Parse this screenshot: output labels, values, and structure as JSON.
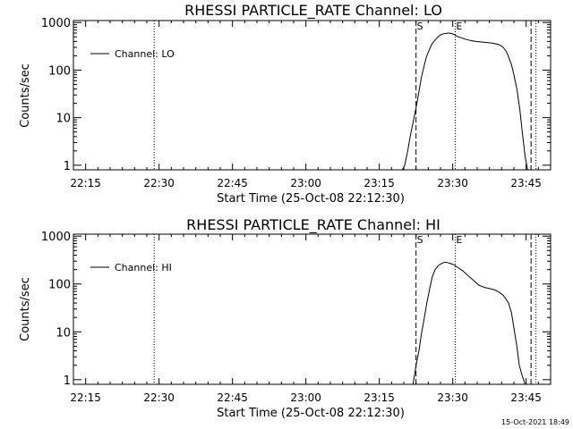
{
  "footer_timestamp": "15-Oct-2021 18:49",
  "chart_data": [
    {
      "type": "line",
      "title": "RHESSI PARTICLE_RATE Channel: LO",
      "xlabel": "Start Time (25-Oct-08 22:12:30)",
      "ylabel": "Counts/sec",
      "x_units": "minutes after 22:12:30",
      "xlim": [
        0,
        97.5
      ],
      "ylim": [
        0.8,
        1100
      ],
      "yscale": "log",
      "x_ticks": [
        {
          "value": 2.5,
          "label": "22:15"
        },
        {
          "value": 17.5,
          "label": "22:30"
        },
        {
          "value": 32.5,
          "label": "22:45"
        },
        {
          "value": 47.5,
          "label": "23:00"
        },
        {
          "value": 62.5,
          "label": "23:15"
        },
        {
          "value": 77.5,
          "label": "23:30"
        },
        {
          "value": 92.5,
          "label": "23:45"
        }
      ],
      "y_ticks": [
        {
          "value": 1,
          "label": "1"
        },
        {
          "value": 10,
          "label": "10"
        },
        {
          "value": 100,
          "label": "100"
        },
        {
          "value": 1000,
          "label": "1000"
        }
      ],
      "legend": {
        "position": "top-left",
        "label": "Channel: LO"
      },
      "markers": [
        {
          "x": 16.5,
          "style": "dotted",
          "label": ""
        },
        {
          "x": 70.0,
          "style": "dashed",
          "label": "S"
        },
        {
          "x": 78.0,
          "style": "dotted",
          "label": "E"
        },
        {
          "x": 93.5,
          "style": "dashed",
          "label": ""
        },
        {
          "x": 94.5,
          "style": "dotted",
          "label": ""
        }
      ],
      "series": [
        {
          "x": [
            67.2,
            67.7,
            68.3,
            68.8,
            69.4,
            70.0,
            70.6,
            71.1,
            71.7,
            72.2,
            72.8,
            73.3,
            73.9,
            74.5,
            75.0,
            75.6,
            76.1,
            76.7,
            77.2,
            77.8,
            78.3,
            78.9,
            79.5,
            80.0,
            81.1,
            82.2,
            83.4,
            84.5,
            85.6,
            86.7,
            87.3,
            87.8,
            88.4,
            88.9,
            89.5,
            90.0,
            90.6,
            91.2,
            91.7,
            92.3,
            92.8
          ],
          "y": [
            0.8,
            1.0,
            2.0,
            4.0,
            8.0,
            16,
            35,
            70,
            130,
            200,
            280,
            360,
            430,
            500,
            550,
            580,
            590,
            600,
            590,
            560,
            520,
            490,
            470,
            450,
            420,
            400,
            390,
            380,
            370,
            350,
            330,
            300,
            250,
            190,
            130,
            80,
            40,
            15,
            5,
            1.5,
            0.8
          ]
        }
      ]
    },
    {
      "type": "line",
      "title": "RHESSI PARTICLE_RATE Channel: HI",
      "xlabel": "Start Time (25-Oct-08 22:12:30)",
      "ylabel": "Counts/sec",
      "x_units": "minutes after 22:12:30",
      "xlim": [
        0,
        97.5
      ],
      "ylim": [
        0.8,
        1100
      ],
      "yscale": "log",
      "x_ticks": [
        {
          "value": 2.5,
          "label": "22:15"
        },
        {
          "value": 17.5,
          "label": "22:30"
        },
        {
          "value": 32.5,
          "label": "22:45"
        },
        {
          "value": 47.5,
          "label": "23:00"
        },
        {
          "value": 62.5,
          "label": "23:15"
        },
        {
          "value": 77.5,
          "label": "23:30"
        },
        {
          "value": 92.5,
          "label": "23:45"
        }
      ],
      "y_ticks": [
        {
          "value": 1,
          "label": "1"
        },
        {
          "value": 10,
          "label": "10"
        },
        {
          "value": 100,
          "label": "100"
        },
        {
          "value": 1000,
          "label": "1000"
        }
      ],
      "legend": {
        "position": "top-left",
        "label": "Channel: HI"
      },
      "markers": [
        {
          "x": 16.5,
          "style": "dotted",
          "label": ""
        },
        {
          "x": 70.0,
          "style": "dashed",
          "label": "S"
        },
        {
          "x": 78.0,
          "style": "dotted",
          "label": "E"
        },
        {
          "x": 93.5,
          "style": "dashed",
          "label": ""
        },
        {
          "x": 94.5,
          "style": "dotted",
          "label": ""
        }
      ],
      "series": [
        {
          "x": [
            69.4,
            70.0,
            70.6,
            71.1,
            71.7,
            72.2,
            72.8,
            73.3,
            73.9,
            74.5,
            75.0,
            75.6,
            76.1,
            76.7,
            77.2,
            77.8,
            78.3,
            79.5,
            80.6,
            81.7,
            82.8,
            83.9,
            85.0,
            86.1,
            86.7,
            87.2,
            87.8,
            88.3,
            88.9,
            89.5,
            90.0,
            90.6,
            91.1,
            91.7,
            92.3
          ],
          "y": [
            0.8,
            2.0,
            4.0,
            9.0,
            20,
            40,
            80,
            140,
            200,
            240,
            260,
            280,
            285,
            275,
            265,
            250,
            230,
            190,
            150,
            120,
            95,
            85,
            80,
            75,
            70,
            65,
            58,
            50,
            40,
            25,
            12,
            5,
            2,
            1.2,
            0.8
          ]
        }
      ]
    }
  ]
}
